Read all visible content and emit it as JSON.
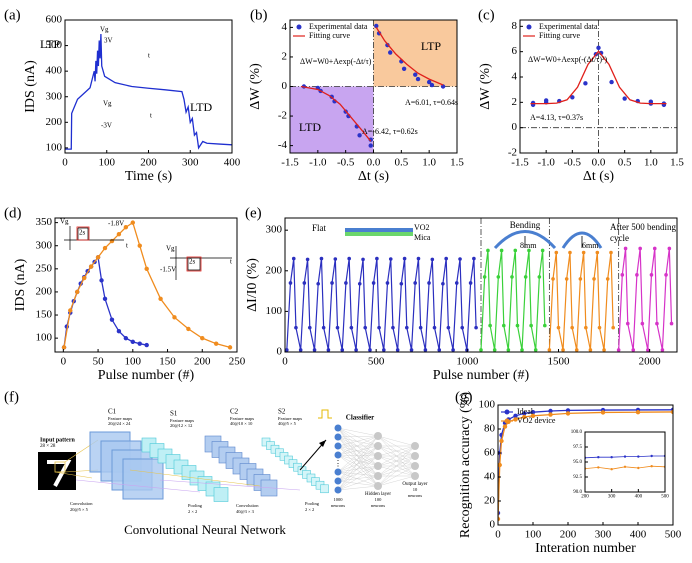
{
  "chart_data": [
    {
      "panel": "(a)",
      "type": "line",
      "xlabel": "Time (s)",
      "ylabel": "IDS (nA)",
      "xlim": [
        0,
        400
      ],
      "xticks": [
        0,
        100,
        200,
        300,
        400
      ],
      "ylim": [
        80,
        600
      ],
      "yticks": [
        100,
        200,
        300,
        400,
        500,
        600
      ],
      "series": [
        {
          "color": "#1f2fd0",
          "style": "line",
          "x": [
            0,
            15,
            16,
            30,
            50,
            60,
            70,
            72,
            74,
            76,
            78,
            80,
            82,
            84,
            86,
            88,
            95,
            120,
            160,
            200,
            240,
            280,
            285,
            290,
            295,
            300,
            305,
            310,
            315,
            320,
            330,
            340,
            370,
            400
          ],
          "values": [
            95,
            95,
            235,
            290,
            320,
            335,
            400,
            360,
            440,
            390,
            480,
            420,
            520,
            450,
            545,
            420,
            380,
            355,
            340,
            333,
            327,
            320,
            290,
            240,
            260,
            200,
            215,
            150,
            160,
            100,
            125,
            118,
            115,
            112
          ]
        }
      ],
      "annotations": [
        "LTP",
        "LTD",
        "Vg",
        "3V",
        "t",
        "Vg",
        "-3V",
        "t"
      ]
    },
    {
      "panel": "(b)",
      "type": "scatter",
      "xlabel": "Δt (s)",
      "ylabel": "ΔW (%)",
      "xlim": [
        -1.5,
        1.5
      ],
      "xticks": [
        -1.5,
        {
          "value": -1,
          "label": "-1.0"
        },
        -0.5,
        {
          "value": 0,
          "label": "0.0"
        },
        0.5,
        {
          "value": 1,
          "label": "1.0"
        },
        1.5
      ],
      "ylim": [
        -4.5,
        4.5
      ],
      "yticks": [
        -4,
        -2,
        0,
        2,
        4
      ],
      "legend": "upper left",
      "regions": [
        {
          "x": [
            0,
            1.5
          ],
          "y": [
            0,
            4.5
          ],
          "color": "#f9c99d"
        },
        {
          "x": [
            -1.5,
            0
          ],
          "y": [
            -4.5,
            0
          ],
          "color": "#c8a5f0"
        }
      ],
      "hlines": [
        0
      ],
      "vlines": [
        0
      ],
      "series": [
        {
          "name": "Experimental data",
          "color": "#2b33c9",
          "style": "markers",
          "x": [
            -1.25,
            -1.0,
            -0.95,
            -0.75,
            -0.7,
            -0.5,
            -0.45,
            -0.3,
            -0.25,
            -0.05,
            -0.05,
            0.05,
            0.1,
            0.25,
            0.3,
            0.5,
            0.55,
            0.75,
            0.8,
            1.0,
            1.05,
            1.25
          ],
          "values": [
            0,
            -0.1,
            -0.3,
            -0.7,
            -1.0,
            -1.7,
            -2.0,
            -2.7,
            -3.3,
            -3.6,
            -4.0,
            4.1,
            3.6,
            2.8,
            2.3,
            1.7,
            1.2,
            0.8,
            0.5,
            0.3,
            0.1,
            0
          ]
        },
        {
          "name": "Fitting curve",
          "color": "#e0201b",
          "style": "line",
          "x": [
            -1.3,
            -1.0,
            -0.8,
            -0.6,
            -0.4,
            -0.2,
            -0.05,
            null,
            0.05,
            0.2,
            0.4,
            0.6,
            0.8,
            1.0,
            1.25
          ],
          "values": [
            0,
            -0.2,
            -0.6,
            -1.2,
            -2.1,
            -3.0,
            -3.7,
            null,
            4.0,
            3.1,
            2.2,
            1.5,
            0.9,
            0.5,
            0.1
          ]
        }
      ],
      "annotations": [
        "ΔW=W0+Aexp(-Δt/τ)",
        "LTP",
        "LTD",
        "A=6.01, τ=0.64s",
        "A=-6.42, τ=0.62s"
      ]
    },
    {
      "panel": "(c)",
      "type": "scatter",
      "xlabel": "Δt (s)",
      "ylabel": "ΔW (%)",
      "xlim": [
        -1.5,
        1.5
      ],
      "xticks": [
        -1.5,
        {
          "value": -1,
          "label": "-1.0"
        },
        -0.5,
        {
          "value": 0,
          "label": "0.0"
        },
        0.5,
        {
          "value": 1,
          "label": "1.0"
        },
        1.5
      ],
      "ylim": [
        -2,
        8.5
      ],
      "yticks": [
        -2,
        0,
        2,
        4,
        6,
        8
      ],
      "legend": "upper left",
      "hlines": [
        0
      ],
      "vlines": [
        0
      ],
      "series": [
        {
          "name": "Experimental data",
          "color": "#2b33c9",
          "style": "markers",
          "x": [
            -1.25,
            -1.0,
            -0.75,
            -0.5,
            -0.25,
            -0.05,
            0,
            0.05,
            0.25,
            0.5,
            0.75,
            1.0,
            1.25,
            -1.25,
            -1.0,
            1.0,
            1.25
          ],
          "values": [
            1.8,
            2.0,
            2.1,
            2.4,
            3.5,
            5.8,
            6.3,
            5.9,
            3.6,
            2.3,
            2.1,
            1.9,
            1.8,
            1.95,
            2.15,
            2.05,
            1.9
          ]
        },
        {
          "name": "Fitting curve",
          "color": "#e0201b",
          "style": "line",
          "x": [
            -1.3,
            -1.0,
            -0.8,
            -0.6,
            -0.4,
            -0.2,
            0,
            0.2,
            0.4,
            0.6,
            0.8,
            1.0,
            1.3
          ],
          "values": [
            1.9,
            1.9,
            1.94,
            2.2,
            3.2,
            5.0,
            6.03,
            5.0,
            3.2,
            2.2,
            1.94,
            1.9,
            1.9
          ]
        }
      ],
      "annotations": [
        "ΔW=W0+Aexp(-(Δt/τ)²)",
        "A=4.13, τ=0.37s"
      ]
    },
    {
      "panel": "(d)",
      "type": "line",
      "xlabel": "Pulse number (#)",
      "ylabel": "IDS (nA)",
      "xlim": [
        -12,
        250
      ],
      "xticks": [
        0,
        50,
        100,
        150,
        200,
        250
      ],
      "ylim": [
        70,
        360
      ],
      "yticks": [
        100,
        150,
        200,
        250,
        300,
        350
      ],
      "series": [
        {
          "color": "#2b33c9",
          "style": "line+markers",
          "x": [
            1,
            5,
            10,
            15,
            20,
            25,
            30,
            35,
            40,
            45,
            50,
            55,
            60,
            70,
            80,
            90,
            100,
            110,
            120
          ],
          "values": [
            80,
            125,
            155,
            180,
            200,
            218,
            232,
            245,
            255,
            265,
            275,
            225,
            185,
            140,
            115,
            100,
            92,
            88,
            85
          ]
        },
        {
          "color": "#f08c1e",
          "style": "line+markers",
          "x": [
            1,
            10,
            20,
            30,
            40,
            50,
            60,
            70,
            80,
            90,
            100,
            110,
            120,
            140,
            160,
            180,
            200,
            220,
            240
          ],
          "values": [
            80,
            160,
            200,
            230,
            255,
            275,
            295,
            310,
            325,
            340,
            350,
            300,
            250,
            185,
            145,
            120,
            100,
            88,
            80
          ]
        }
      ],
      "annotations": [
        "Vg",
        "-1.8V",
        "2s",
        "t",
        "Vg",
        "-1.5V",
        "2s",
        "t"
      ]
    },
    {
      "panel": "(e)",
      "type": "line",
      "xlabel": "Pulse number (#)",
      "ylabel": "ΔI/I0 (%)",
      "xlim": [
        0,
        2150
      ],
      "xticks": [
        0,
        500,
        1000,
        1500,
        2000
      ],
      "ylim": [
        0,
        330
      ],
      "yticks": [
        0,
        100,
        200,
        300
      ],
      "vlines": [
        1075,
        1450,
        1830
      ],
      "series": [
        {
          "color": "#2b2fbf",
          "style": "line+markers",
          "x": [
            10,
            30,
            48,
            60,
            86,
            106,
            124,
            136,
            162,
            182,
            200,
            212,
            238,
            258,
            276,
            288,
            314,
            334,
            352,
            364,
            390,
            410,
            428,
            440,
            466,
            486,
            504,
            516,
            542,
            562,
            580,
            592,
            618,
            638,
            656,
            668,
            694,
            714,
            732,
            744,
            770,
            790,
            808,
            820,
            846,
            866,
            884,
            896,
            922,
            942,
            960,
            972,
            998,
            1018,
            1036,
            1048
          ],
          "values": [
            5,
            170,
            230,
            60,
            5,
            170,
            228,
            60,
            5,
            168,
            230,
            60,
            5,
            170,
            229,
            60,
            5,
            170,
            230,
            60,
            5,
            168,
            228,
            60,
            5,
            170,
            230,
            60,
            5,
            170,
            229,
            60,
            5,
            168,
            230,
            60,
            5,
            170,
            230,
            60,
            5,
            170,
            228,
            60,
            5,
            168,
            230,
            60,
            5,
            170,
            229,
            60,
            5,
            170,
            230,
            60
          ]
        },
        {
          "color": "#3ad13a",
          "style": "line+markers",
          "x": [
            1075,
            1095,
            1113,
            1125,
            1150,
            1170,
            1188,
            1200,
            1225,
            1245,
            1263,
            1275,
            1300,
            1320,
            1338,
            1350,
            1375,
            1395,
            1413,
            1425
          ],
          "values": [
            5,
            185,
            250,
            65,
            5,
            185,
            250,
            65,
            5,
            185,
            250,
            65,
            5,
            185,
            250,
            65,
            5,
            185,
            250,
            65
          ]
        },
        {
          "color": "#f08c1e",
          "style": "line+markers",
          "x": [
            1450,
            1470,
            1488,
            1500,
            1525,
            1545,
            1563,
            1575,
            1600,
            1620,
            1638,
            1650,
            1675,
            1695,
            1713,
            1725,
            1750,
            1770,
            1788,
            1800
          ],
          "values": [
            5,
            180,
            245,
            60,
            5,
            180,
            245,
            60,
            5,
            180,
            245,
            60,
            5,
            180,
            245,
            60,
            5,
            180,
            245,
            60
          ]
        },
        {
          "color": "#d633c8",
          "style": "line+markers",
          "x": [
            1830,
            1850,
            1868,
            1880,
            1910,
            1930,
            1948,
            1960,
            1990,
            2010,
            2028,
            2040,
            2070,
            2090,
            2108,
            2120
          ],
          "values": [
            5,
            190,
            255,
            70,
            5,
            190,
            255,
            70,
            5,
            190,
            255,
            70,
            5,
            190,
            255,
            70
          ]
        }
      ],
      "annotations": [
        "Flat",
        "VO2",
        "Mica",
        "Bending",
        "8mm",
        "6mm",
        "After 500 bending",
        "cycle"
      ]
    },
    {
      "panel": "(f)",
      "type": "diagram",
      "labels": [
        "C1",
        "Feature maps",
        "20@24 × 24",
        "S1",
        "Feature maps",
        "20@12 × 12",
        "C2",
        "Feature maps",
        "40@10 × 10",
        "S2",
        "Feature maps",
        "40@5 × 5",
        "Input pattern",
        "28 × 28",
        "Convolution",
        "20@5 × 5",
        "Pooling",
        "2 × 2",
        "Convolution",
        "40@3 × 3",
        "Pooling",
        "2 × 2",
        "Classifier",
        "1000",
        "neurons",
        "Hidden layer",
        "100",
        "neurons",
        "Output layer",
        "10",
        "neurons",
        "Convolutional Neural Network"
      ]
    },
    {
      "panel": "(g)",
      "type": "line",
      "xlabel": "Interation number",
      "ylabel": "Recognition accuracy (%)",
      "xlim": [
        0,
        500
      ],
      "xticks": [
        0,
        100,
        200,
        300,
        400,
        500
      ],
      "ylim": [
        0,
        100
      ],
      "yticks": [
        0,
        20,
        40,
        60,
        80,
        100
      ],
      "legend": "upper left",
      "series": [
        {
          "name": "Ideal",
          "color": "#2b33c9",
          "style": "line+markers",
          "x": [
            0,
            5,
            10,
            20,
            30,
            50,
            75,
            100,
            150,
            200,
            300,
            400,
            500
          ],
          "values": [
            10,
            60,
            75,
            85,
            88,
            91,
            93,
            94,
            95,
            95.5,
            95.8,
            95.9,
            96
          ]
        },
        {
          "name": "VO2 device",
          "color": "#f08c1e",
          "style": "line+markers",
          "x": [
            0,
            5,
            10,
            20,
            30,
            50,
            75,
            100,
            150,
            200,
            300,
            400,
            500
          ],
          "values": [
            5,
            50,
            70,
            82,
            86,
            88,
            90,
            91,
            92,
            93,
            93.8,
            94,
            94.2
          ]
        }
      ],
      "inset": {
        "xlim": [
          200,
          500
        ],
        "xticks": [
          200,
          300,
          400,
          500
        ],
        "ylim": [
          90,
          100
        ],
        "yticks": [
          {
            "value": 90,
            "label": "90.0"
          },
          92.5,
          {
            "value": 95,
            "label": "95.0"
          },
          97.5,
          {
            "value": 100,
            "label": "100.0"
          }
        ],
        "series": [
          {
            "color": "#2b33c9",
            "style": "line+markers",
            "x": [
              200,
              250,
              300,
              350,
              400,
              450,
              500
            ],
            "values": [
              95.7,
              95.8,
              95.8,
              95.9,
              95.9,
              96.0,
              96.0
            ]
          },
          {
            "color": "#f08c1e",
            "style": "line+markers",
            "x": [
              200,
              250,
              300,
              350,
              400,
              450,
              500
            ],
            "values": [
              93.9,
              94.1,
              93.8,
              94.2,
              94.0,
              94.3,
              94.2
            ]
          }
        ]
      }
    }
  ]
}
